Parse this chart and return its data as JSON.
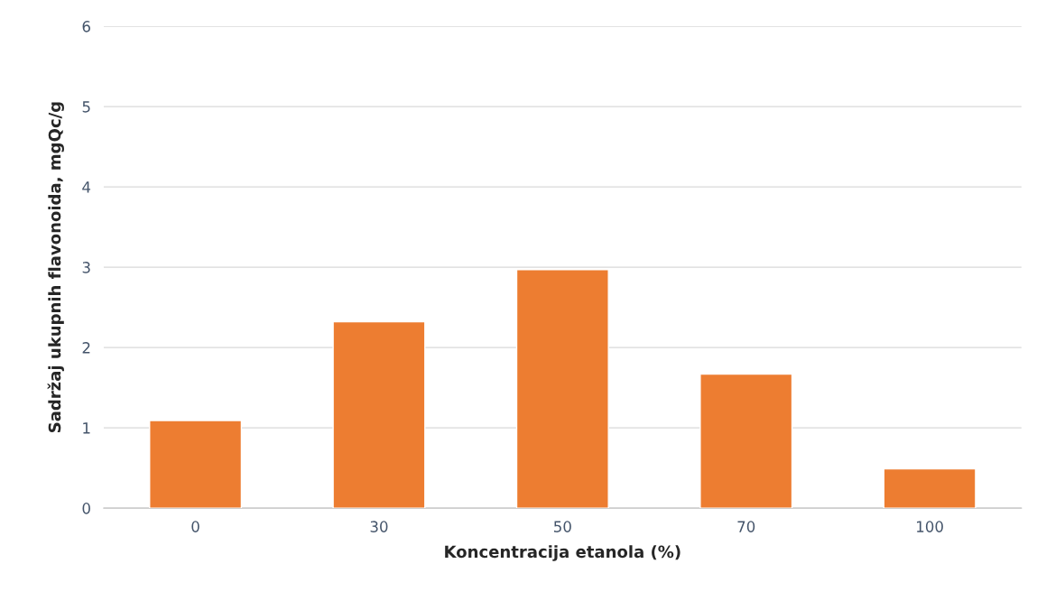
{
  "chart_data": {
    "type": "bar",
    "xlabel": "Koncentracija etanola (%)",
    "ylabel": "Sadržaj ukupnih flavonoida, mgQc/g",
    "categories": [
      "0",
      "30",
      "50",
      "70",
      "100"
    ],
    "values": [
      1.09,
      2.32,
      2.97,
      1.67,
      0.49
    ],
    "color": "#ed7d31",
    "ylim": [
      0,
      6
    ],
    "yticks": [
      0,
      1,
      2,
      3,
      4,
      5,
      6
    ],
    "grid": "y"
  }
}
